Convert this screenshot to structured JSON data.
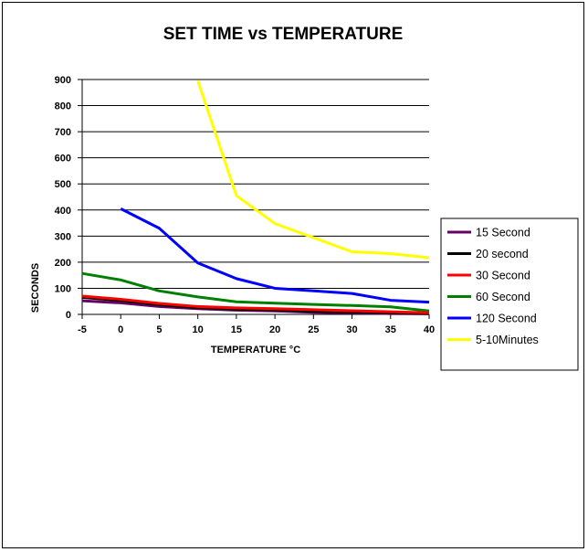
{
  "chart_data": {
    "type": "line",
    "title": "SET TIME vs TEMPERATURE",
    "xlabel": "TEMPERATURE °C",
    "ylabel": "SECONDS",
    "categories": [
      "-5",
      "0",
      "5",
      "10",
      "15",
      "20",
      "25",
      "30",
      "35",
      "40"
    ],
    "ylim": [
      0,
      900
    ],
    "yticks": [
      "0",
      "100",
      "200",
      "300",
      "400",
      "500",
      "600",
      "700",
      "800",
      "900"
    ],
    "grid": true,
    "legend_position": "right",
    "series": [
      {
        "name": "15 Second",
        "color": "#660066",
        "values": [
          52,
          44,
          30,
          22,
          16,
          13,
          8,
          6,
          3,
          2
        ]
      },
      {
        "name": "20 second",
        "color": "#000000",
        "values": [
          65,
          53,
          37,
          26,
          20,
          17,
          12,
          9,
          6,
          4
        ]
      },
      {
        "name": "30 Second",
        "color": "#ff0000",
        "values": [
          70,
          58,
          42,
          30,
          25,
          22,
          18,
          14,
          10,
          6
        ]
      },
      {
        "name": "60 Second",
        "color": "#008000",
        "values": [
          157,
          132,
          90,
          67,
          48,
          43,
          38,
          34,
          29,
          13
        ]
      },
      {
        "name": "120 Second",
        "color": "#0000ff",
        "values": [
          null,
          405,
          330,
          197,
          137,
          100,
          90,
          80,
          54,
          47
        ]
      },
      {
        "name": "5-10Minutes",
        "color": "#ffff00",
        "values": [
          null,
          null,
          null,
          895,
          455,
          348,
          null,
          240,
          233,
          217
        ]
      }
    ]
  }
}
